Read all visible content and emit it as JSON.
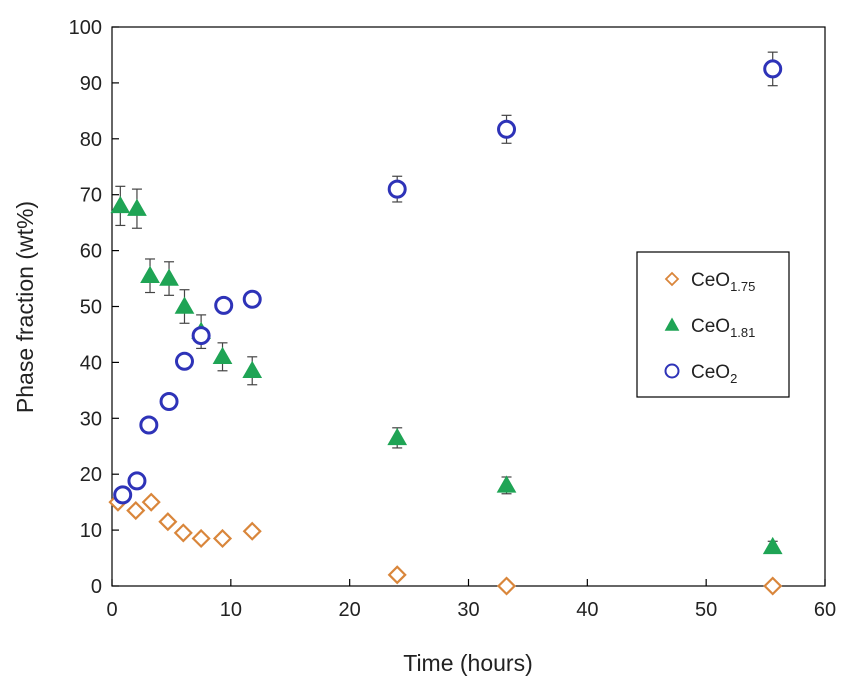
{
  "chart_data": {
    "type": "scatter",
    "xlabel": "Time (hours)",
    "ylabel": "Phase fraction (wt%)",
    "xlim": [
      0,
      60
    ],
    "ylim": [
      0,
      100
    ],
    "x_ticks": [
      0,
      10,
      20,
      30,
      40,
      50,
      60
    ],
    "y_ticks": [
      0,
      10,
      20,
      30,
      40,
      50,
      60,
      70,
      80,
      90,
      100
    ],
    "grid": false,
    "legend_position": "right",
    "series": [
      {
        "name_base": "CeO",
        "name_sub": "1.75",
        "marker": "diamond-open",
        "color": "#D9863B",
        "points": [
          {
            "x": 0.5,
            "y": 15.0
          },
          {
            "x": 2.0,
            "y": 13.5
          },
          {
            "x": 3.3,
            "y": 15.0
          },
          {
            "x": 4.7,
            "y": 11.5
          },
          {
            "x": 6.0,
            "y": 9.5
          },
          {
            "x": 7.5,
            "y": 8.5
          },
          {
            "x": 9.3,
            "y": 8.5
          },
          {
            "x": 11.8,
            "y": 9.8
          },
          {
            "x": 24.0,
            "y": 2.0
          },
          {
            "x": 33.2,
            "y": 0.0
          },
          {
            "x": 55.6,
            "y": 0.0
          }
        ]
      },
      {
        "name_base": "CeO",
        "name_sub": "1.81",
        "marker": "triangle-filled",
        "color": "#1FA455",
        "points": [
          {
            "x": 0.7,
            "y": 68.0,
            "err": 3.5
          },
          {
            "x": 2.1,
            "y": 67.5,
            "err": 3.5
          },
          {
            "x": 3.2,
            "y": 55.5,
            "err": 3.0
          },
          {
            "x": 4.8,
            "y": 55.0,
            "err": 3.0
          },
          {
            "x": 6.1,
            "y": 50.0,
            "err": 3.0
          },
          {
            "x": 7.5,
            "y": 45.5,
            "err": 3.0
          },
          {
            "x": 9.3,
            "y": 41.0,
            "err": 2.5
          },
          {
            "x": 11.8,
            "y": 38.5,
            "err": 2.5
          },
          {
            "x": 24.0,
            "y": 26.5,
            "err": 1.8
          },
          {
            "x": 33.2,
            "y": 18.0,
            "err": 1.5
          },
          {
            "x": 55.6,
            "y": 7.0,
            "err": 1.0
          }
        ]
      },
      {
        "name_base": "CeO",
        "name_sub": "2",
        "marker": "circle-open",
        "color": "#2E33B8",
        "points": [
          {
            "x": 0.9,
            "y": 16.3
          },
          {
            "x": 2.1,
            "y": 18.8
          },
          {
            "x": 3.1,
            "y": 28.8
          },
          {
            "x": 4.8,
            "y": 33.0
          },
          {
            "x": 6.1,
            "y": 40.2
          },
          {
            "x": 7.5,
            "y": 44.8
          },
          {
            "x": 9.4,
            "y": 50.2
          },
          {
            "x": 11.8,
            "y": 51.3
          },
          {
            "x": 24.0,
            "y": 71.0,
            "err": 2.3
          },
          {
            "x": 33.2,
            "y": 81.7,
            "err": 2.5
          },
          {
            "x": 55.6,
            "y": 92.5,
            "err": 3.0
          }
        ]
      }
    ]
  }
}
